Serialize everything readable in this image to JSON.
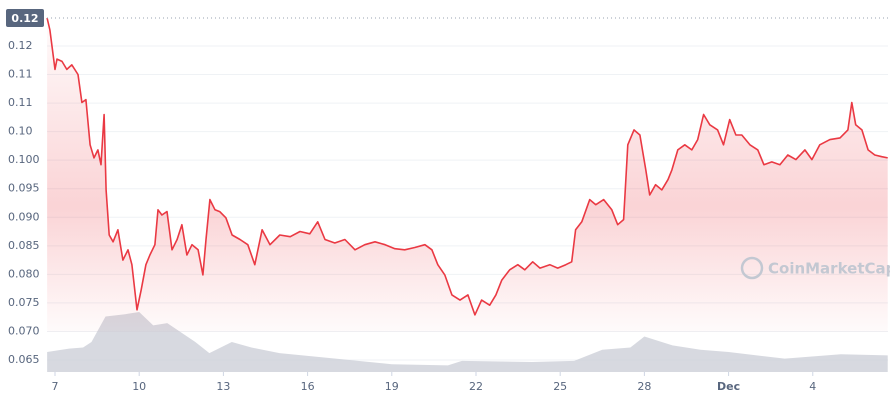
{
  "chart_data": {
    "type": "line",
    "watermark": "CoinMarketCap",
    "marker": {
      "value": 0.1249,
      "label": "0.12"
    },
    "xlim": [
      -0.285,
      29.68
    ],
    "ylim": [
      0.0629,
      0.1249
    ],
    "xticks": [
      {
        "value": 0,
        "label": "7"
      },
      {
        "value": 3,
        "label": "10"
      },
      {
        "value": 6,
        "label": "13"
      },
      {
        "value": 9,
        "label": "16"
      },
      {
        "value": 12,
        "label": "19"
      },
      {
        "value": 15,
        "label": "22"
      },
      {
        "value": 18,
        "label": "25"
      },
      {
        "value": 21,
        "label": "28"
      },
      {
        "value": 24,
        "label": "Dec"
      },
      {
        "value": 27,
        "label": "4"
      }
    ],
    "yticks": [
      0.12,
      {
        "value": 0.115,
        "label": "0.11"
      },
      0.11,
      {
        "value": 0.105,
        "label": "0.10"
      },
      {
        "value": 0.1,
        "label": "0.100"
      },
      0.095,
      {
        "value": 0.09,
        "label": "0.090"
      },
      0.085,
      {
        "value": 0.08,
        "label": "0.080"
      },
      0.075,
      {
        "value": 0.07,
        "label": "0.070"
      },
      0.065
    ],
    "grid": true,
    "series": [
      {
        "color": "#ea3943",
        "x": [
          -0.28,
          -0.18,
          0,
          0.07,
          0.25,
          0.42,
          0.6,
          0.82,
          0.96,
          1.1,
          1.25,
          1.39,
          1.53,
          1.64,
          1.75,
          1.82,
          1.93,
          2.07,
          2.24,
          2.42,
          2.6,
          2.74,
          2.92,
          3.07,
          3.24,
          3.38,
          3.56,
          3.67,
          3.81,
          3.99,
          4.17,
          4.35,
          4.52,
          4.7,
          4.88,
          5.1,
          5.27,
          5.38,
          5.52,
          5.7,
          5.87,
          6.09,
          6.31,
          6.59,
          6.87,
          7.12,
          7.38,
          7.66,
          8.01,
          8.38,
          8.73,
          9.08,
          9.36,
          9.62,
          9.97,
          10.33,
          10.69,
          11.04,
          11.4,
          11.76,
          12.11,
          12.46,
          12.82,
          13.18,
          13.43,
          13.64,
          13.89,
          14.14,
          14.43,
          14.71,
          14.96,
          15.2,
          15.49,
          15.71,
          15.92,
          16.2,
          16.49,
          16.74,
          17.02,
          17.28,
          17.63,
          17.91,
          18.2,
          18.41,
          18.55,
          18.77,
          19.05,
          19.27,
          19.55,
          19.84,
          20.05,
          20.26,
          20.41,
          20.63,
          20.84,
          21.05,
          21.19,
          21.4,
          21.62,
          21.84,
          21.98,
          22.19,
          22.44,
          22.69,
          22.9,
          23.11,
          23.33,
          23.61,
          23.82,
          24.04,
          24.26,
          24.47,
          24.76,
          25.04,
          25.26,
          25.54,
          25.83,
          26.11,
          26.4,
          26.72,
          26.97,
          27.25,
          27.61,
          27.97,
          28.25,
          28.39,
          28.53,
          28.75,
          28.97,
          29.21,
          29.46,
          29.67
        ],
        "values": [
          0.1249,
          0.1228,
          0.1159,
          0.1177,
          0.1173,
          0.1159,
          0.1167,
          0.115,
          0.1101,
          0.1106,
          0.1027,
          0.1004,
          0.1018,
          0.0992,
          0.108,
          0.0948,
          0.0869,
          0.0857,
          0.0878,
          0.0825,
          0.0843,
          0.0817,
          0.0738,
          0.0773,
          0.0817,
          0.0834,
          0.0852,
          0.0913,
          0.0904,
          0.091,
          0.0843,
          0.0861,
          0.0887,
          0.0834,
          0.0852,
          0.0843,
          0.0799,
          0.0861,
          0.0931,
          0.0913,
          0.091,
          0.0899,
          0.0869,
          0.0861,
          0.0852,
          0.0817,
          0.0878,
          0.0852,
          0.0869,
          0.0866,
          0.0875,
          0.0871,
          0.0892,
          0.0861,
          0.0855,
          0.0861,
          0.0843,
          0.0852,
          0.0857,
          0.0852,
          0.0845,
          0.0843,
          0.0847,
          0.0852,
          0.0843,
          0.0817,
          0.0799,
          0.0764,
          0.0755,
          0.0764,
          0.0729,
          0.0755,
          0.0746,
          0.0764,
          0.079,
          0.0808,
          0.0817,
          0.0808,
          0.0822,
          0.0811,
          0.0817,
          0.0811,
          0.0817,
          0.0822,
          0.0878,
          0.0892,
          0.0931,
          0.0922,
          0.0931,
          0.0913,
          0.0887,
          0.0896,
          0.1027,
          0.1053,
          0.1044,
          0.0983,
          0.0939,
          0.0957,
          0.0948,
          0.0966,
          0.0983,
          0.1018,
          0.1027,
          0.1018,
          0.1036,
          0.108,
          0.1062,
          0.1053,
          0.1027,
          0.1071,
          0.1044,
          0.1044,
          0.1027,
          0.1018,
          0.0992,
          0.0997,
          0.0992,
          0.1009,
          0.1001,
          0.1018,
          0.1001,
          0.1027,
          0.1036,
          0.1039,
          0.1053,
          0.1101,
          0.1062,
          0.1053,
          0.1018,
          0.1009,
          0.1006,
          0.1004
        ]
      }
    ],
    "volume": {
      "color": "#c9ccd6",
      "x": [
        -0.28,
        0.5,
        1.0,
        1.3,
        1.8,
        2.5,
        3.0,
        3.5,
        4.0,
        5.0,
        5.5,
        6.3,
        7.0,
        8.0,
        10.0,
        12.0,
        14.0,
        14.5,
        17.0,
        18.5,
        19.5,
        20.5,
        21.0,
        22.0,
        23.0,
        24.0,
        26.0,
        28.0,
        29.67
      ],
      "values": [
        18,
        21,
        22,
        27,
        50,
        52,
        54,
        42,
        44,
        27,
        17,
        27,
        22,
        17,
        12,
        7,
        6,
        10,
        9,
        10,
        20,
        22,
        32,
        24,
        20,
        18,
        12,
        16,
        15
      ]
    }
  }
}
